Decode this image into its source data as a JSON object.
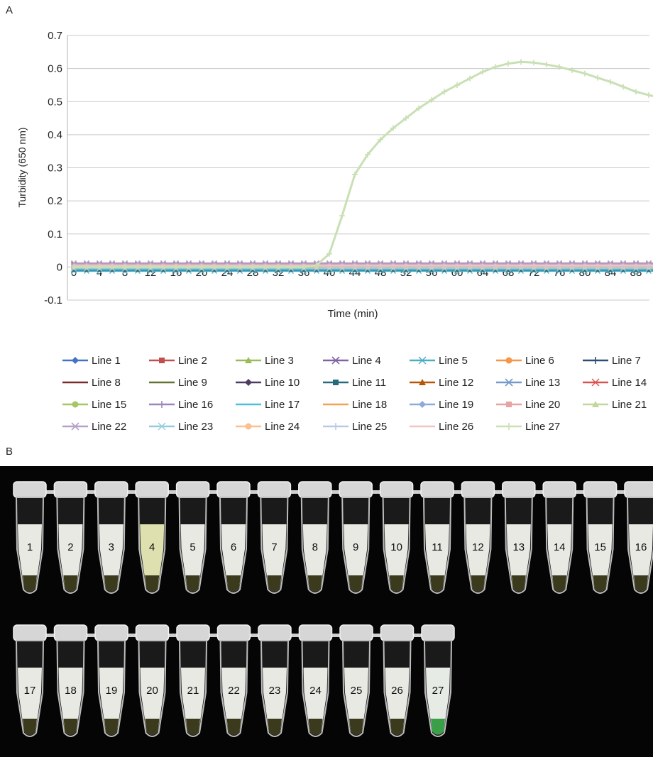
{
  "panel_a_label": "A",
  "panel_b_label": "B",
  "chart_data": {
    "type": "line",
    "xlabel": "Time (min)",
    "ylabel": "Turbidity (650 nm)",
    "ylim": [
      -0.1,
      0.7
    ],
    "yticks": [
      "0.7",
      "0.6",
      "0.5",
      "0.4",
      "0.3",
      "0.2",
      "0.1",
      "0",
      "-0.1"
    ],
    "ytick_values": [
      0.7,
      0.6,
      0.5,
      0.4,
      0.3,
      0.2,
      0.1,
      0,
      -0.1
    ],
    "xticks": [
      "0",
      "4",
      "8",
      "12",
      "16",
      "20",
      "24",
      "28",
      "32",
      "36",
      "40",
      "44",
      "48",
      "52",
      "56",
      "60",
      "64",
      "68",
      "72",
      "76",
      "80",
      "84",
      "88"
    ],
    "xlim": [
      0,
      92
    ],
    "grid": true,
    "legend_position": "bottom",
    "series": [
      {
        "name": "Line 1",
        "color": "#4472c4",
        "marker": "diamond",
        "baseline": 0.0
      },
      {
        "name": "Line 2",
        "color": "#c0504d",
        "marker": "square",
        "baseline": 0.005
      },
      {
        "name": "Line 3",
        "color": "#9bbb59",
        "marker": "triangle",
        "baseline": 0.003
      },
      {
        "name": "Line 4",
        "color": "#8064a2",
        "marker": "x",
        "baseline": 0.008
      },
      {
        "name": "Line 5",
        "color": "#4bacc6",
        "marker": "star",
        "baseline": -0.012
      },
      {
        "name": "Line 6",
        "color": "#f79646",
        "marker": "circle",
        "baseline": -0.004
      },
      {
        "name": "Line 7",
        "color": "#2c4d75",
        "marker": "plus",
        "baseline": 0.002
      },
      {
        "name": "Line 8",
        "color": "#772c2a",
        "marker": "none",
        "baseline": 0.001
      },
      {
        "name": "Line 9",
        "color": "#5f7530",
        "marker": "none",
        "baseline": 0.004
      },
      {
        "name": "Line 10",
        "color": "#4d3b62",
        "marker": "diamond",
        "baseline": 0.006
      },
      {
        "name": "Line 11",
        "color": "#276a7c",
        "marker": "square",
        "baseline": -0.008
      },
      {
        "name": "Line 12",
        "color": "#b65708",
        "marker": "triangle",
        "baseline": -0.002
      },
      {
        "name": "Line 13",
        "color": "#729aca",
        "marker": "x",
        "baseline": 0.003
      },
      {
        "name": "Line 14",
        "color": "#d9534f",
        "marker": "star",
        "baseline": 0.009
      },
      {
        "name": "Line 15",
        "color": "#a5c663",
        "marker": "circle",
        "baseline": 0.001
      },
      {
        "name": "Line 16",
        "color": "#9c85b9",
        "marker": "plus",
        "baseline": 0.007
      },
      {
        "name": "Line 17",
        "color": "#4bc0db",
        "marker": "none",
        "baseline": -0.006
      },
      {
        "name": "Line 18",
        "color": "#f7a04f",
        "marker": "none",
        "baseline": 0.002
      },
      {
        "name": "Line 19",
        "color": "#8ea9db",
        "marker": "diamond",
        "baseline": 0.004
      },
      {
        "name": "Line 20",
        "color": "#e6a3a2",
        "marker": "square",
        "baseline": 0.0
      },
      {
        "name": "Line 21",
        "color": "#c3d69b",
        "marker": "triangle",
        "baseline": 0.005
      },
      {
        "name": "Line 22",
        "color": "#b3a2c7",
        "marker": "x",
        "baseline": 0.012
      },
      {
        "name": "Line 23",
        "color": "#93cddd",
        "marker": "star",
        "baseline": -0.005
      },
      {
        "name": "Line 24",
        "color": "#fac090",
        "marker": "circle",
        "baseline": 0.0
      },
      {
        "name": "Line 25",
        "color": "#b9c9e8",
        "marker": "plus",
        "baseline": 0.003
      },
      {
        "name": "Line 26",
        "color": "#f2c4c3",
        "marker": "none",
        "baseline": 0.006
      },
      {
        "name": "Line 27",
        "color": "#c9e0b4",
        "marker": "plus",
        "baseline": 0.0,
        "x": [
          0,
          4,
          8,
          12,
          16,
          20,
          24,
          28,
          32,
          36,
          38,
          40,
          42,
          44,
          46,
          48,
          50,
          52,
          54,
          56,
          58,
          60,
          62,
          64,
          66,
          68,
          70,
          72,
          74,
          76,
          78,
          80,
          82,
          84,
          86,
          88,
          90,
          92
        ],
        "y": [
          0,
          0,
          0,
          0,
          0,
          0,
          0,
          0,
          0,
          0,
          0.005,
          0.04,
          0.155,
          0.28,
          0.34,
          0.385,
          0.42,
          0.45,
          0.48,
          0.505,
          0.53,
          0.55,
          0.57,
          0.59,
          0.605,
          0.615,
          0.62,
          0.618,
          0.612,
          0.605,
          0.595,
          0.585,
          0.572,
          0.56,
          0.545,
          0.53,
          0.52,
          0.51
        ]
      }
    ]
  },
  "tubes": {
    "row1": [
      "1",
      "2",
      "3",
      "4",
      "5",
      "6",
      "7",
      "8",
      "9",
      "10",
      "11",
      "12",
      "13",
      "14",
      "15",
      "16"
    ],
    "row2": [
      "17",
      "18",
      "19",
      "20",
      "21",
      "22",
      "23",
      "24",
      "25",
      "26",
      "27"
    ],
    "sediment_color": "#3b3a1c",
    "positive_color": "#3aa048",
    "tube4_tint": "#e6e9b5"
  }
}
